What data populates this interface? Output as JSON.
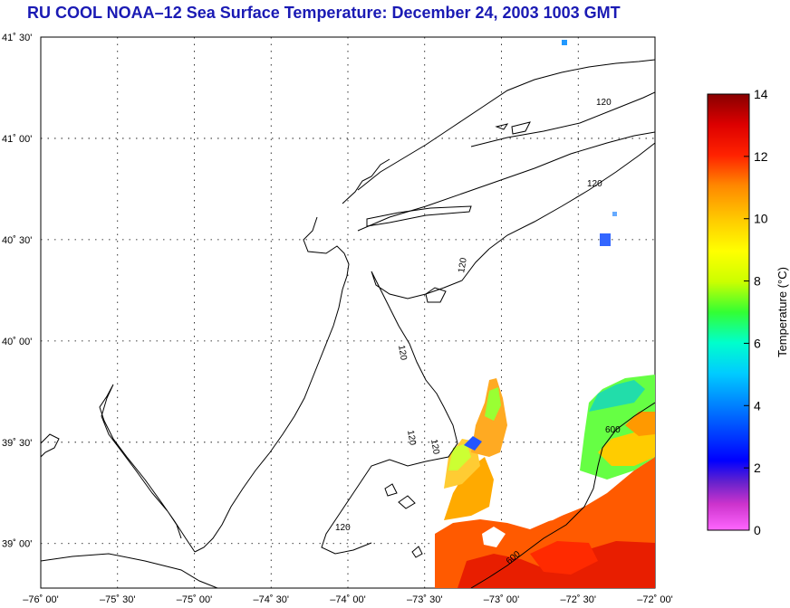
{
  "title": "RU COOL  NOAA–12  Sea Surface Temperature:  December 24, 2003 1003 GMT",
  "map": {
    "lat_labels": [
      "41˚ 30'",
      "41˚ 00'",
      "40˚ 30'",
      "40˚ 00'",
      "39˚ 30'",
      "39˚ 00'"
    ],
    "lat_values": [
      41.5,
      41.0,
      40.5,
      40.0,
      39.5,
      39.0
    ],
    "lon_labels": [
      "–76˚ 00'",
      "–75˚ 30'",
      "–75˚ 00'",
      "–74˚ 30'",
      "–74˚ 00'",
      "–73˚ 30'",
      "–73˚ 00'",
      "–72˚ 30'",
      "–72˚ 00'"
    ],
    "lon_values": [
      -76.0,
      -75.5,
      -75.0,
      -74.5,
      -74.0,
      -73.5,
      -73.0,
      -72.5,
      -72.0
    ],
    "lat_range": [
      38.78,
      41.5
    ],
    "lon_range": [
      -76.0,
      -72.0
    ],
    "contour_labels": [
      "120",
      "120",
      "120",
      "120",
      "120",
      "120",
      "600",
      "600"
    ],
    "colors": {
      "coastline": "#000000",
      "grid": "#000000"
    }
  },
  "colorbar": {
    "label": "Temperature (°C)",
    "ticks": [
      "0",
      "2",
      "4",
      "6",
      "8",
      "10",
      "12",
      "14"
    ],
    "tick_values": [
      0,
      2,
      4,
      6,
      8,
      10,
      12,
      14
    ],
    "range": [
      0,
      14
    ]
  }
}
